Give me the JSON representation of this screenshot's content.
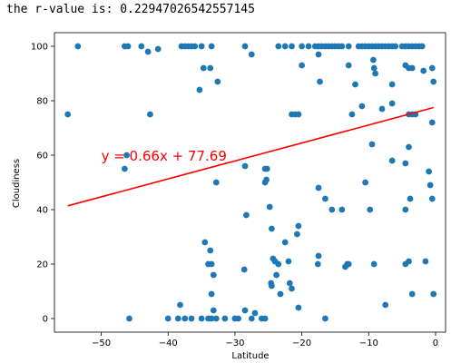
{
  "output": {
    "text": "the r-value is: 0.22947026542557145"
  },
  "chart_data": {
    "type": "scatter",
    "xlabel": "Latitude",
    "ylabel": "Cloudiness",
    "xlim": [
      -57,
      1.5
    ],
    "ylim": [
      -5,
      105
    ],
    "xticks": [
      -50,
      -40,
      -30,
      -20,
      -10,
      0
    ],
    "yticks": [
      0,
      20,
      40,
      60,
      80,
      100
    ],
    "grid": false,
    "point_color": "#1f77b4",
    "line_color": "#ff0000",
    "regression": {
      "slope": 0.66,
      "intercept": 77.69,
      "x_range": [
        -55,
        -0.3
      ]
    },
    "annotation": {
      "text": "y = 0.66x + 77.69",
      "x": -50,
      "y": 60,
      "color": "#ff0000"
    },
    "points": [
      [
        -55,
        75
      ],
      [
        -53.5,
        100
      ],
      [
        -46.5,
        100
      ],
      [
        -46,
        100
      ],
      [
        -46.5,
        55
      ],
      [
        -46.2,
        60
      ],
      [
        -45.8,
        0
      ],
      [
        -44,
        100
      ],
      [
        -43,
        98
      ],
      [
        -42.7,
        75
      ],
      [
        -41.5,
        99
      ],
      [
        -40,
        0
      ],
      [
        -38.5,
        0
      ],
      [
        -38.2,
        5
      ],
      [
        -37.5,
        0
      ],
      [
        -36.5,
        0
      ],
      [
        -35,
        0
      ],
      [
        -38,
        100
      ],
      [
        -37.5,
        100
      ],
      [
        -37,
        100
      ],
      [
        -36.5,
        100
      ],
      [
        -36,
        100
      ],
      [
        -35,
        100
      ],
      [
        -33.5,
        100
      ],
      [
        -35.3,
        84
      ],
      [
        -34.7,
        92
      ],
      [
        -33.7,
        92
      ],
      [
        -32.6,
        87
      ],
      [
        -34.5,
        28
      ],
      [
        -34,
        20
      ],
      [
        -33.5,
        20
      ],
      [
        -33.2,
        16
      ],
      [
        -33.7,
        25
      ],
      [
        -33.5,
        9
      ],
      [
        -32.8,
        50
      ],
      [
        -33.2,
        3
      ],
      [
        -34,
        0
      ],
      [
        -33.5,
        0
      ],
      [
        -32.8,
        0
      ],
      [
        -31.5,
        0
      ],
      [
        -30,
        0
      ],
      [
        -29.5,
        0
      ],
      [
        -28.5,
        3
      ],
      [
        -27.5,
        0
      ],
      [
        -27,
        2
      ],
      [
        -26,
        0
      ],
      [
        -25.5,
        0
      ],
      [
        -28.5,
        100
      ],
      [
        -27.5,
        97
      ],
      [
        -28.5,
        56
      ],
      [
        -28.3,
        38
      ],
      [
        -28.6,
        18
      ],
      [
        -25.5,
        55
      ],
      [
        -25.2,
        55
      ],
      [
        -25.5,
        50
      ],
      [
        -25.3,
        51
      ],
      [
        -24.8,
        41
      ],
      [
        -24.5,
        33
      ],
      [
        -24.3,
        22
      ],
      [
        -24,
        21
      ],
      [
        -23.8,
        16
      ],
      [
        -23.5,
        20
      ],
      [
        -23.2,
        9
      ],
      [
        -24.5,
        12
      ],
      [
        -24.6,
        13
      ],
      [
        -22.5,
        28
      ],
      [
        -22,
        21
      ],
      [
        -21.8,
        13
      ],
      [
        -21.5,
        11
      ],
      [
        -20.5,
        34
      ],
      [
        -20.7,
        31
      ],
      [
        -20.5,
        4
      ],
      [
        -23.5,
        100
      ],
      [
        -22.5,
        100
      ],
      [
        -21.5,
        100
      ],
      [
        -21.5,
        75
      ],
      [
        -21,
        75
      ],
      [
        -20.5,
        75
      ],
      [
        -20,
        93
      ],
      [
        -20,
        100
      ],
      [
        -19,
        100
      ],
      [
        -18,
        100
      ],
      [
        -17.5,
        100
      ],
      [
        -17,
        100
      ],
      [
        -16.5,
        100
      ],
      [
        -16,
        100
      ],
      [
        -15.5,
        100
      ],
      [
        -15,
        100
      ],
      [
        -14.5,
        100
      ],
      [
        -14,
        100
      ],
      [
        -13,
        100
      ],
      [
        -17.5,
        97
      ],
      [
        -17.3,
        87
      ],
      [
        -17.5,
        48
      ],
      [
        -16.5,
        44
      ],
      [
        -15.5,
        40
      ],
      [
        -14,
        40
      ],
      [
        -17.5,
        23
      ],
      [
        -17.6,
        20
      ],
      [
        -16.5,
        0
      ],
      [
        -13.5,
        19
      ],
      [
        -13.2,
        20
      ],
      [
        -13,
        20
      ],
      [
        -13,
        93
      ],
      [
        -12.5,
        75
      ],
      [
        -12,
        86
      ],
      [
        -11,
        78
      ],
      [
        -11.5,
        100
      ],
      [
        -11,
        100
      ],
      [
        -10.5,
        100
      ],
      [
        -10,
        100
      ],
      [
        -9.5,
        100
      ],
      [
        -9,
        100
      ],
      [
        -8.5,
        100
      ],
      [
        -8,
        100
      ],
      [
        -7.5,
        100
      ],
      [
        -7,
        100
      ],
      [
        -6.5,
        100
      ],
      [
        -6,
        100
      ],
      [
        -10.5,
        50
      ],
      [
        -9.8,
        40
      ],
      [
        -9.5,
        64
      ],
      [
        -9.3,
        95
      ],
      [
        -9.2,
        92
      ],
      [
        -9,
        90
      ],
      [
        -9.2,
        20
      ],
      [
        -8,
        77
      ],
      [
        -7.5,
        5
      ],
      [
        -6.5,
        86
      ],
      [
        -6.5,
        79
      ],
      [
        -6.5,
        58
      ],
      [
        -5,
        100
      ],
      [
        -4.5,
        100
      ],
      [
        -4,
        100
      ],
      [
        -3.5,
        100
      ],
      [
        -3,
        100
      ],
      [
        -2.5,
        100
      ],
      [
        -2,
        100
      ],
      [
        -4.5,
        93
      ],
      [
        -4,
        92
      ],
      [
        -3.5,
        92
      ],
      [
        -4,
        75
      ],
      [
        -3.5,
        75
      ],
      [
        -3,
        75
      ],
      [
        -4.5,
        57
      ],
      [
        -4,
        63
      ],
      [
        -4.5,
        40
      ],
      [
        -3.8,
        44
      ],
      [
        -4.5,
        20
      ],
      [
        -4,
        21
      ],
      [
        -3.5,
        9
      ],
      [
        -1.8,
        91
      ],
      [
        -1.5,
        21
      ],
      [
        -1,
        54
      ],
      [
        -0.8,
        49
      ],
      [
        -0.5,
        72
      ],
      [
        -0.5,
        44
      ],
      [
        -0.3,
        9
      ],
      [
        -0.5,
        92
      ],
      [
        -0.3,
        87
      ]
    ]
  }
}
